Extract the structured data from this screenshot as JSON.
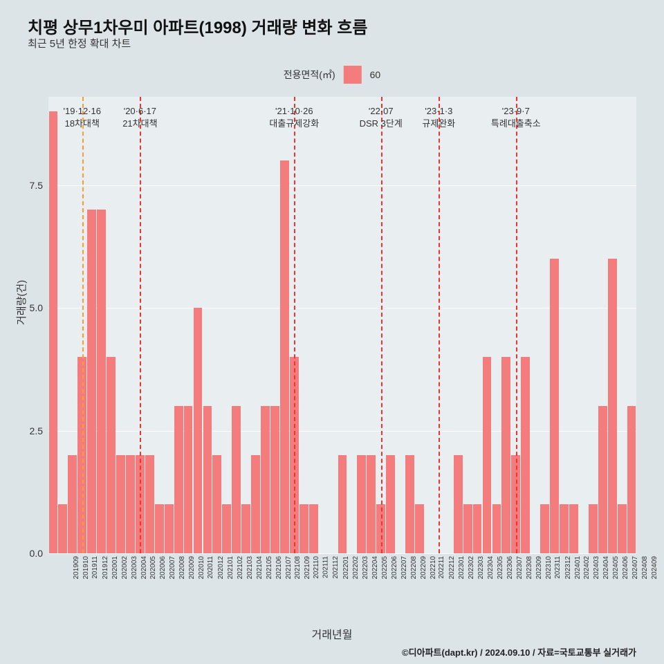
{
  "title": "치평 상무1차우미 아파트(1998) 거래량 변화 흐름",
  "subtitle": "최근 5년 한정 확대 차트",
  "legend": {
    "label": "전용면적(㎡)",
    "series_label": "60",
    "swatch_color": "#f47c7c"
  },
  "chart": {
    "type": "bar",
    "background_color": "#e9eef1",
    "page_background": "#dde4e8",
    "bar_color": "#f47c7c",
    "grid_color": "#ffffff",
    "ylabel": "거래량(건)",
    "xlabel": "거래년월",
    "ylim": [
      0,
      9.3
    ],
    "yticks": [
      0.0,
      2.5,
      5.0,
      7.5
    ],
    "ytick_labels": [
      "0.0",
      "2.5",
      "5.0",
      "7.5"
    ],
    "categories": [
      "201909",
      "201910",
      "201911",
      "201912",
      "202001",
      "202002",
      "202003",
      "202004",
      "202005",
      "202006",
      "202007",
      "202008",
      "202009",
      "202010",
      "202011",
      "202012",
      "202101",
      "202102",
      "202103",
      "202104",
      "202105",
      "202106",
      "202107",
      "202108",
      "202109",
      "202110",
      "202111",
      "202112",
      "202201",
      "202202",
      "202203",
      "202204",
      "202205",
      "202206",
      "202207",
      "202208",
      "202209",
      "202210",
      "202211",
      "202212",
      "202301",
      "202302",
      "202303",
      "202304",
      "202305",
      "202306",
      "202307",
      "202308",
      "202309",
      "202310",
      "202311",
      "202312",
      "202401",
      "202402",
      "202403",
      "202404",
      "202405",
      "202406",
      "202407",
      "202408",
      "202409"
    ],
    "values": [
      9,
      1,
      2,
      4,
      7,
      7,
      4,
      2,
      2,
      2,
      2,
      1,
      1,
      3,
      3,
      5,
      3,
      2,
      1,
      3,
      1,
      2,
      3,
      3,
      8,
      4,
      1,
      1,
      0,
      0,
      2,
      0,
      2,
      2,
      1,
      2,
      0,
      2,
      1,
      0,
      0,
      0,
      2,
      1,
      1,
      4,
      1,
      4,
      2,
      4,
      0,
      1,
      6,
      1,
      1,
      0,
      1,
      3,
      6,
      1,
      3
    ],
    "bar_width_ratio": 0.92,
    "annotations": [
      {
        "date_label": "'19·12·16",
        "policy_label": "18차대책",
        "x_index": 3,
        "color": "#ff9933"
      },
      {
        "date_label": "'20·6·17",
        "policy_label": "21차대책",
        "x_index": 9,
        "color": "#ee3333"
      },
      {
        "date_label": "'21·10·26",
        "policy_label": "대출규제강화",
        "x_index": 25,
        "color": "#ee3333"
      },
      {
        "date_label": "'22·07",
        "policy_label": "DSR 3단계",
        "x_index": 34,
        "color": "#ee3333"
      },
      {
        "date_label": "'23·1·3",
        "policy_label": "규제완화",
        "x_index": 40,
        "color": "#ee3333"
      },
      {
        "date_label": "'23·9·7",
        "policy_label": "특례대출축소",
        "x_index": 48,
        "color": "#ee3333"
      }
    ]
  },
  "credit": "©디아파트(dapt.kr) / 2024.09.10 / 자료=국토교통부 실거래가"
}
